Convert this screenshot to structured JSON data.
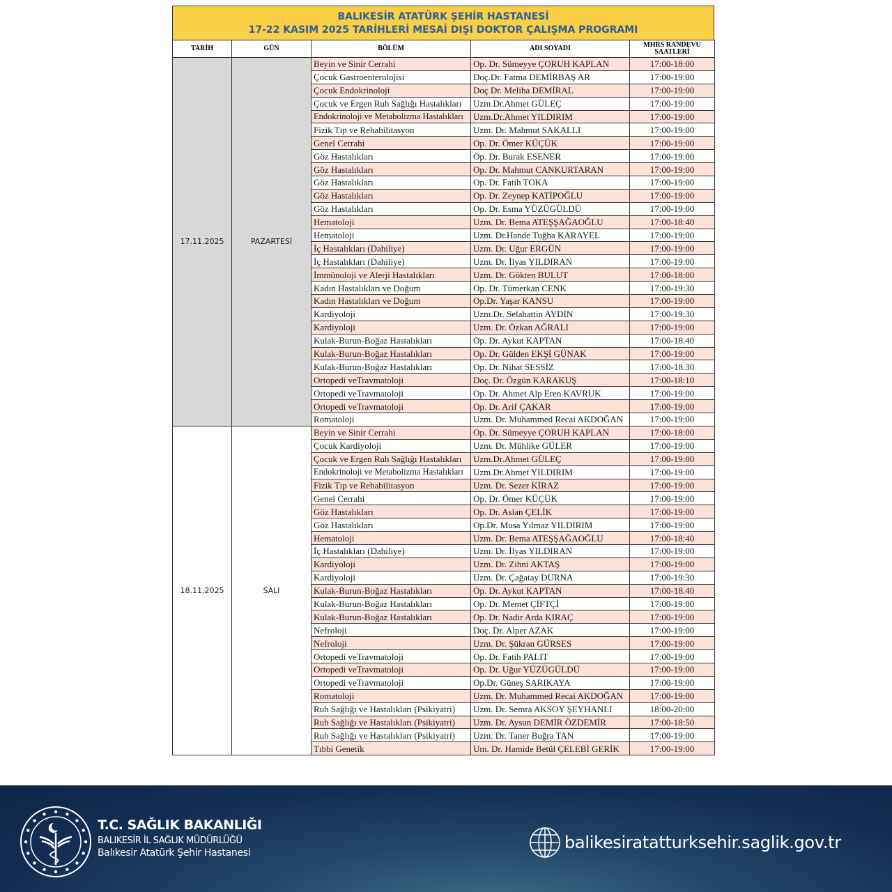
{
  "header": {
    "title_line1": "BALIKESİR ATATÜRK ŞEHİR HASTANESİ",
    "title_line2": "17-22 KASIM 2025 TARİHLERİ MESAİ DIŞI DOKTOR ÇALIŞMA PROGRAMI",
    "colors": {
      "title_band": "#f8cf45",
      "title_text": "#2f5f9b",
      "row_alt": "#fbe3da",
      "date_cell": "#d9d9d9"
    }
  },
  "columns": {
    "date": "TARİH",
    "day": "GÜN",
    "dept": "BÖLÜM",
    "name": "ADI SOYADI",
    "time_l1": "MHRS RANDEVU",
    "time_l2": "SAATLERİ"
  },
  "groups": [
    {
      "date": "17.11.2025",
      "day": "PAZARTESİ",
      "rows": [
        {
          "dept": "Beyin ve Sinir Cerrahi",
          "name": "Op. Dr. Sümeyye ÇORUH KAPLAN",
          "time": "17:00-18:00"
        },
        {
          "dept": "Çocuk Gastroenterolojisi",
          "name": "Doç.Dr. Fatma DEMİRBAŞ AR",
          "time": "17:00-19:00"
        },
        {
          "dept": "Çocuk Endokrinoloji",
          "name": "Doç Dr. Meliha DEMİRAL",
          "time": "17:00-19:00"
        },
        {
          "dept": "Çocuk ve Ergen  Ruh Sağlığı Hastalıkları",
          "name": "Uzm.Dr.Ahmet GÜLEÇ",
          "time": "17:00-19:00"
        },
        {
          "dept": "Endokrinoloji ve Metabolizma Hastalıkları",
          "name": "Uzm.Dr.Ahmet YILDIRIM",
          "time": "17:00-19:00"
        },
        {
          "dept": "Fizik Tıp ve Rehabilitasyon",
          "name": "Uzm. Dr. Mahmut SAKALLI",
          "time": "17:00-19:00"
        },
        {
          "dept": "Genel Cerrahi",
          "name": "Op. Dr. Ömer KÜÇÜK",
          "time": "17:00-19:00"
        },
        {
          "dept": "Göz Hastalıkları",
          "name": "Op. Dr. Burak ESENER",
          "time": "17:00-19:00"
        },
        {
          "dept": "Göz Hastalıkları",
          "name": "Op. Dr. Mahmut CANKURTARAN",
          "time": "17:00-19:00"
        },
        {
          "dept": "Göz Hastalıkları",
          "name": "Op. Dr. Fatih TOKA",
          "time": "17:00-19:00"
        },
        {
          "dept": "Göz Hastalıkları",
          "name": "Op. Dr. Zeynep KATİPOĞLU",
          "time": "17:00-19:00"
        },
        {
          "dept": "Göz Hastalıkları",
          "name": "Op. Dr. Esma YÜZÜGÜLDÜ",
          "time": "17:00-19:00"
        },
        {
          "dept": "Hematoloji",
          "name": "Uzm. Dr. Bema ATEŞŞAĞAOĞLU",
          "time": "17:00-18:40"
        },
        {
          "dept": "Hematoloji",
          "name": "Uzm. Dr.Hande Tuğba KARAYEL",
          "time": "17:00-19:00"
        },
        {
          "dept": "İç Hastalıkları  (Dahiliye)",
          "name": "Uzm. Dr. Uğur ERGÜN",
          "time": "17:00-19:00"
        },
        {
          "dept": "İç Hastalıkları  (Dahiliye)",
          "name": "Uzm. Dr. İlyas YILDIRAN",
          "time": "17:00-19:00"
        },
        {
          "dept": "İmmünoloji ve Alerji Hastalıkları",
          "name": "Uzm. Dr. Gökten BULUT",
          "time": "17:00-18:00"
        },
        {
          "dept": "Kadın Hastalıkları ve Doğum",
          "name": "Op. Dr. Tümerkan CENK",
          "time": "17:00-19:30"
        },
        {
          "dept": "Kadın Hastalıkları ve Doğum",
          "name": "Op.Dr. Yaşar KANSU",
          "time": "17:00-19:00"
        },
        {
          "dept": "Kardiyoloji",
          "name": "Uzm.Dr. Selahattin AYDIN",
          "time": "17:00-19:30"
        },
        {
          "dept": "Kardiyoloji",
          "name": "Uzm. Dr. Özkan AĞRALI",
          "time": "17:00-19:00"
        },
        {
          "dept": "Kulak-Burun-Boğaz Hastalıkları",
          "name": "Op. Dr. Aykut KAPTAN",
          "time": "17:00-18.40"
        },
        {
          "dept": "Kulak-Burun-Boğaz Hastalıkları",
          "name": "Op. Dr. Gülden EKŞİ GÜNAK",
          "time": "17:00-19:00"
        },
        {
          "dept": "Kulak-Burun-Boğaz Hastalıkları",
          "name": "Op. Dr. Nihat SESSİZ",
          "time": "17:00-18.30"
        },
        {
          "dept": "Ortopedi veTravmatoloji",
          "name": "Doç. Dr. Özgün KARAKUŞ",
          "time": "17:00-18:10"
        },
        {
          "dept": "Ortopedi veTravmatoloji",
          "name": "Op. Dr. Ahmet Alp Eren KAVRUK",
          "time": "17:00-19:00"
        },
        {
          "dept": "Ortopedi veTravmatoloji",
          "name": "Op. Dr. Arif ÇAKAR",
          "time": "17:00-19:00"
        },
        {
          "dept": "Romatoloji",
          "name": "Uzm. Dr. Muhammed Recai AKDOĞAN",
          "time": "17:00-19:00"
        }
      ]
    },
    {
      "date": "18.11.2025",
      "day": "SALI",
      "rows": [
        {
          "dept": "Beyin ve Sinir Cerrahi",
          "name": "Op. Dr. Sümeyye ÇORUH KAPLAN",
          "time": "17:00-18:00"
        },
        {
          "dept": "Çocuk Kardiyoloji",
          "name": "Uzm. Dr. Mühlike GÜLER",
          "time": "17:00-19:00"
        },
        {
          "dept": "Çocuk ve Ergen  Ruh Sağlığı Hastalıkları",
          "name": "Uzm.Dr.Ahmet GÜLEÇ",
          "time": "17:00-19:00"
        },
        {
          "dept": "Endokrinoloji ve Metabolizma Hastalıkları",
          "name": "Uzm.Dr.Ahmet YILDIRIM",
          "time": "17:00-19:00"
        },
        {
          "dept": "Fizik Tıp ve Rehabilitasyon",
          "name": "Uzm. Dr. Sezer KİRAZ",
          "time": "17:00-19:00"
        },
        {
          "dept": "Genel Cerrahi",
          "name": "Op. Dr. Ömer KÜÇÜK",
          "time": "17:00-19:00"
        },
        {
          "dept": "Göz Hastalıkları",
          "name": "Op. Dr. Aslan ÇELİK",
          "time": "17:00-19:00"
        },
        {
          "dept": "Göz Hastalıkları",
          "name": "Op.Dr. Musa Yılmaz YILDIRIM",
          "time": "17:00-19:00"
        },
        {
          "dept": "Hematoloji",
          "name": "Uzm. Dr. Bema ATEŞŞAĞAOĞLU",
          "time": "17:00-18:40"
        },
        {
          "dept": "İç Hastalıkları  (Dahiliye)",
          "name": "Uzm. Dr. İlyas YILDIRAN",
          "time": "17:00-19:00"
        },
        {
          "dept": "Kardiyoloji",
          "name": "Uzm. Dr. Zihni AKTAŞ",
          "time": "17:00-19:00"
        },
        {
          "dept": "Kardiyoloji",
          "name": "Uzm. Dr. Çağatay DURNA",
          "time": "17:00-19:30"
        },
        {
          "dept": "Kulak-Burun-Boğaz Hastalıkları",
          "name": "Op. Dr. Aykut KAPTAN",
          "time": "17:00-18.40"
        },
        {
          "dept": "Kulak-Burun-Boğaz Hastalıkları",
          "name": "Op. Dr. Memet ÇİFTÇİ",
          "time": "17:00-19:00"
        },
        {
          "dept": "Kulak-Burun-Boğaz Hastalıkları",
          "name": "Op. Dr. Nadir Arda KIRAÇ",
          "time": "17:00-19:00"
        },
        {
          "dept": "Nefroloji",
          "name": "Doç. Dr. Alper AZAK",
          "time": "17:00-19:00"
        },
        {
          "dept": "Nefroloji",
          "name": "Uzm. Dr. Şükran GÜRSES",
          "time": "17:00-19:00"
        },
        {
          "dept": "Ortopedi veTravmatoloji",
          "name": "Op. Dr. Fatih PALIT",
          "time": "17:00-19:00"
        },
        {
          "dept": "Ortopedi veTravmatoloji",
          "name": "Op. Dr. Uğur YÜZÜGÜLDÜ",
          "time": "17:00-19:00"
        },
        {
          "dept": "Ortopedi veTravmatoloji",
          "name": "Op.Dr. Güneş SARIKAYA",
          "time": "17:00-19:00"
        },
        {
          "dept": "Romatoloji",
          "name": "Uzm. Dr. Muhammed Recai AKDOĞAN",
          "time": "17:00-19:00"
        },
        {
          "dept": "Ruh Sağlığı ve Hastalıkları (Psikiyatri)",
          "name": "Uzm. Dr. Semra AKSOY ŞEYHANLI",
          "time": "18:00-20:00"
        },
        {
          "dept": "Ruh Sağlığı ve Hastalıkları (Psikiyatri)",
          "name": "Uzm. Dr. Aysun DEMİR ÖZDEMİR",
          "time": "17:00-18:50"
        },
        {
          "dept": "Ruh Sağlığı ve Hastalıkları (Psikiyatri)",
          "name": "Uzm. Dr. Taner Buğra TAN",
          "time": "17:00-19:00"
        },
        {
          "dept": "Tıbbi Genetik",
          "name": "Um. Dr. Hamide Betül ÇELEBİ GERİK",
          "time": "17:00-19:00"
        }
      ]
    }
  ],
  "footer": {
    "ministry": "T.C. SAĞLIK BAKANLIĞI",
    "directorate": "BALIKESİR İL SAĞLIK MÜDÜRLÜĞÜ",
    "hospital": "Balıkesir Atatürk Şehir Hastanesi",
    "website": "balikesiratatturksehir.saglik.gov.tr",
    "logo_icon": "ministry-of-health-emblem",
    "web_icon": "globe-icon"
  }
}
